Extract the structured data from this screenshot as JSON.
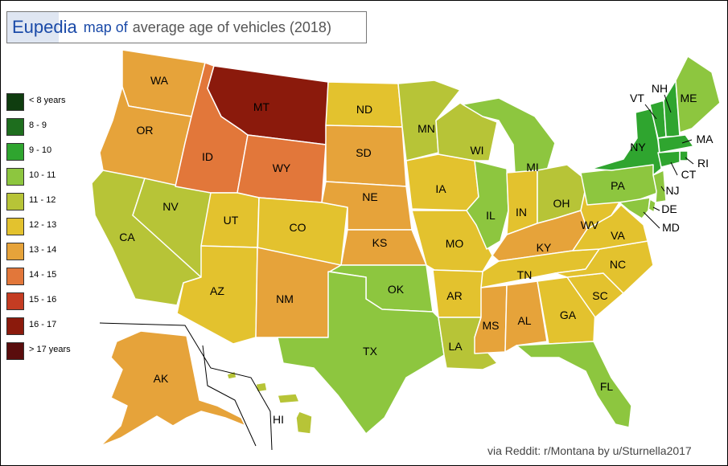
{
  "title": {
    "brand": "Eupedia",
    "map_of": "map of",
    "rest": "average age of vehicles (2018)"
  },
  "legend": [
    {
      "label": "< 8 years",
      "color": "#0f3d0f"
    },
    {
      "label": "8 - 9",
      "color": "#1e6e1e"
    },
    {
      "label": "9 - 10",
      "color": "#2fa52f"
    },
    {
      "label": "10 - 11",
      "color": "#8dc63f"
    },
    {
      "label": "11 - 12",
      "color": "#b7c437"
    },
    {
      "label": "12 - 13",
      "color": "#e3c22e"
    },
    {
      "label": "13 - 14",
      "color": "#e6a33a"
    },
    {
      "label": "14 - 15",
      "color": "#e2773a"
    },
    {
      "label": "15 - 16",
      "color": "#c43c22"
    },
    {
      "label": "16 - 17",
      "color": "#8b1a0c"
    },
    {
      "label": "> 17 years",
      "color": "#5a0d0d"
    }
  ],
  "states": {
    "WA": "WA",
    "OR": "OR",
    "CA": "CA",
    "NV": "NV",
    "ID": "ID",
    "MT": "MT",
    "WY": "WY",
    "UT": "UT",
    "CO": "CO",
    "AZ": "AZ",
    "NM": "NM",
    "ND": "ND",
    "SD": "SD",
    "NE": "NE",
    "KS": "KS",
    "OK": "OK",
    "TX": "TX",
    "MN": "MN",
    "IA": "IA",
    "MO": "MO",
    "AR": "AR",
    "LA": "LA",
    "WI": "WI",
    "IL": "IL",
    "MI": "MI",
    "IN": "IN",
    "OH": "OH",
    "KY": "KY",
    "TN": "TN",
    "MS": "MS",
    "AL": "AL",
    "GA": "GA",
    "FL": "FL",
    "SC": "SC",
    "NC": "NC",
    "VA": "VA",
    "WV": "WV",
    "PA": "PA",
    "NY": "NY",
    "VT": "VT",
    "NH": "NH",
    "ME": "ME",
    "MA": "MA",
    "RI": "RI",
    "CT": "CT",
    "NJ": "NJ",
    "DE": "DE",
    "MD": "MD",
    "AK": "AK",
    "HI": "HI"
  },
  "credit": "via Reddit: r/Montana by u/Sturnella2017"
}
